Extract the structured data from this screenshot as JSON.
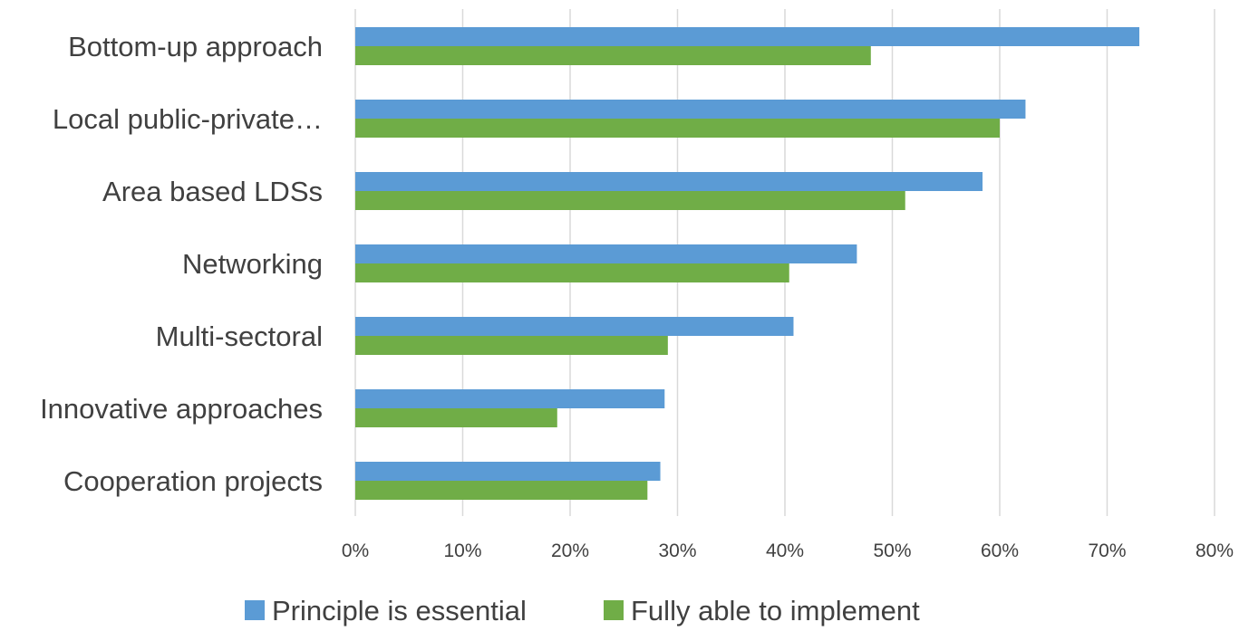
{
  "chart_data": {
    "type": "bar",
    "orientation": "horizontal",
    "categories": [
      "Bottom-up approach",
      "Local public-private…",
      "Area based LDSs",
      "Networking",
      "Multi-sectoral",
      "Innovative approaches",
      "Cooperation projects"
    ],
    "series": [
      {
        "name": "Principle is essential",
        "color": "#5b9bd5",
        "values": [
          0.73,
          0.624,
          0.584,
          0.467,
          0.408,
          0.288,
          0.284
        ]
      },
      {
        "name": "Fully able to implement",
        "color": "#70ad47",
        "values": [
          0.48,
          0.6,
          0.512,
          0.404,
          0.291,
          0.188,
          0.272
        ]
      }
    ],
    "x_ticks": [
      "0%",
      "10%",
      "20%",
      "30%",
      "40%",
      "50%",
      "60%",
      "70%",
      "80%"
    ],
    "xlim": [
      0,
      0.8
    ],
    "grid": "vertical",
    "legend_position": "bottom",
    "title": "",
    "xlabel": "",
    "ylabel": ""
  }
}
